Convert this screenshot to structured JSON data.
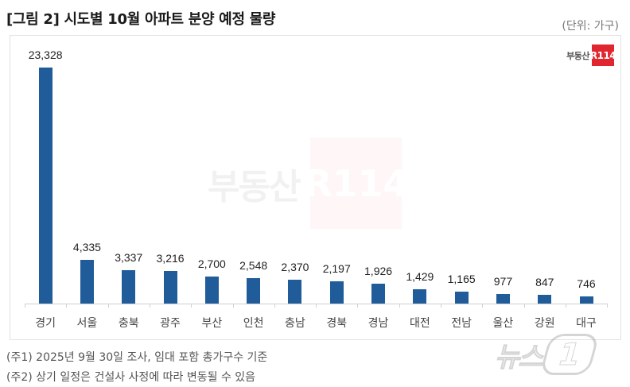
{
  "header": {
    "title": "[그림 2] 시도별 10월 아파트 분양 예정 물량",
    "unit": "(단위: 가구)"
  },
  "logo": {
    "text": "부동산",
    "badge": "R114"
  },
  "watermark": {
    "text": "부동산",
    "badge": "R114"
  },
  "notes": [
    "(주1) 2025년 9월 30일 조사, 임대 포함 총가구수 기준",
    "(주2) 상기 일정은 건설사 사정에 따라 변동될 수 있음"
  ],
  "news_watermark": {
    "text": "뉴스",
    "badge": "1"
  },
  "colors": {
    "bar": "#1f5c99",
    "logo_red": "#e0262f"
  },
  "chart_data": {
    "type": "bar",
    "title": "[그림 2] 시도별 10월 아파트 분양 예정 물량",
    "xlabel": "",
    "ylabel": "",
    "unit": "가구",
    "categories": [
      "경기",
      "서울",
      "충북",
      "광주",
      "부산",
      "인천",
      "충남",
      "경북",
      "경남",
      "대전",
      "전남",
      "울산",
      "강원",
      "대구"
    ],
    "values": [
      23328,
      4335,
      3337,
      3216,
      2700,
      2548,
      2370,
      2197,
      1926,
      1429,
      1165,
      977,
      847,
      746
    ],
    "labels": [
      "23,328",
      "4,335",
      "3,337",
      "3,216",
      "2,700",
      "2,548",
      "2,370",
      "2,197",
      "1,926",
      "1,429",
      "1,165",
      "977",
      "847",
      "746"
    ],
    "ylim": [
      0,
      24000
    ],
    "grid": false,
    "legend": null,
    "data_labels": true
  }
}
